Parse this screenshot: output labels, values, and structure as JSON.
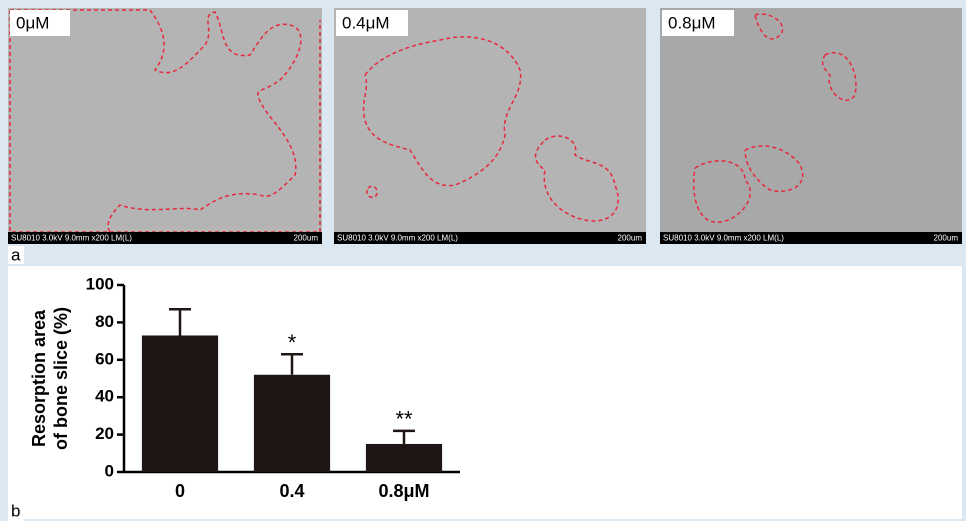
{
  "panels": [
    {
      "label": "0μM",
      "info": "SU8010 3.0kV 9.0mm x200 LM(L)",
      "scale": "200um"
    },
    {
      "label": "0.4μM",
      "info": "SU8010 3.0kV 9.0mm x200 LM(L)",
      "scale": "200um"
    },
    {
      "label": "0.8μM",
      "info": "SU8010 3.0kV 9.0mm x200 LM(L)",
      "scale": "200um"
    }
  ],
  "figure_labels": [
    "a",
    "b"
  ],
  "chart_data": {
    "type": "bar",
    "ylabel": [
      "Resorption area",
      "of bone slice (%)"
    ],
    "categories": [
      "0",
      "0.4",
      "0.8μM"
    ],
    "values": [
      73,
      52,
      15
    ],
    "errors": [
      14,
      11,
      7
    ],
    "annotations": [
      {
        "category": "0.4",
        "text": "*"
      },
      {
        "category": "0.8μM",
        "text": "**"
      }
    ],
    "color": "#1e1614",
    "ylim": [
      0,
      100
    ],
    "yticks": [
      0,
      20,
      40,
      60,
      80,
      100
    ]
  }
}
